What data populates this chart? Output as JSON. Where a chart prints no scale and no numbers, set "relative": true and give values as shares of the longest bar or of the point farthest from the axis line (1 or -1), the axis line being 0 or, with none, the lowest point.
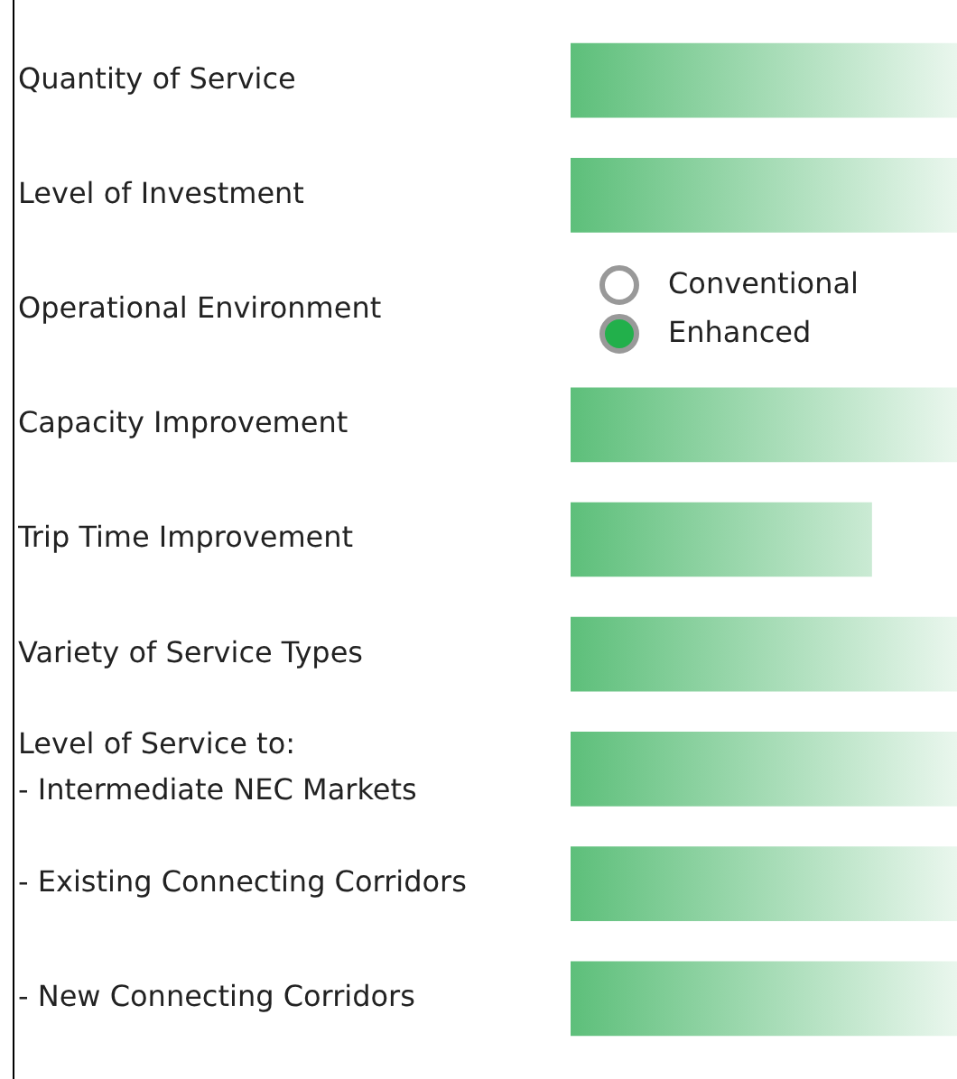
{
  "chart_data": {
    "type": "bar",
    "orientation": "horizontal",
    "relative": true,
    "color": "#5dbf7a",
    "legend": false,
    "grid": false,
    "categories": [
      "Quantity of Service",
      "Level of Investment",
      "Operational Environment",
      "Capacity Improvement",
      "Trip Time Improvement",
      "Variety of Service Types",
      "Level of Service to:\n- Intermediate NEC Markets",
      "- Existing Connecting Corridors",
      "- New Connecting Corridors"
    ],
    "values": [
      1,
      1,
      null,
      1,
      0.78,
      1,
      1,
      1,
      1
    ],
    "annotations": [
      "Conventional",
      "Enhanced"
    ]
  }
}
